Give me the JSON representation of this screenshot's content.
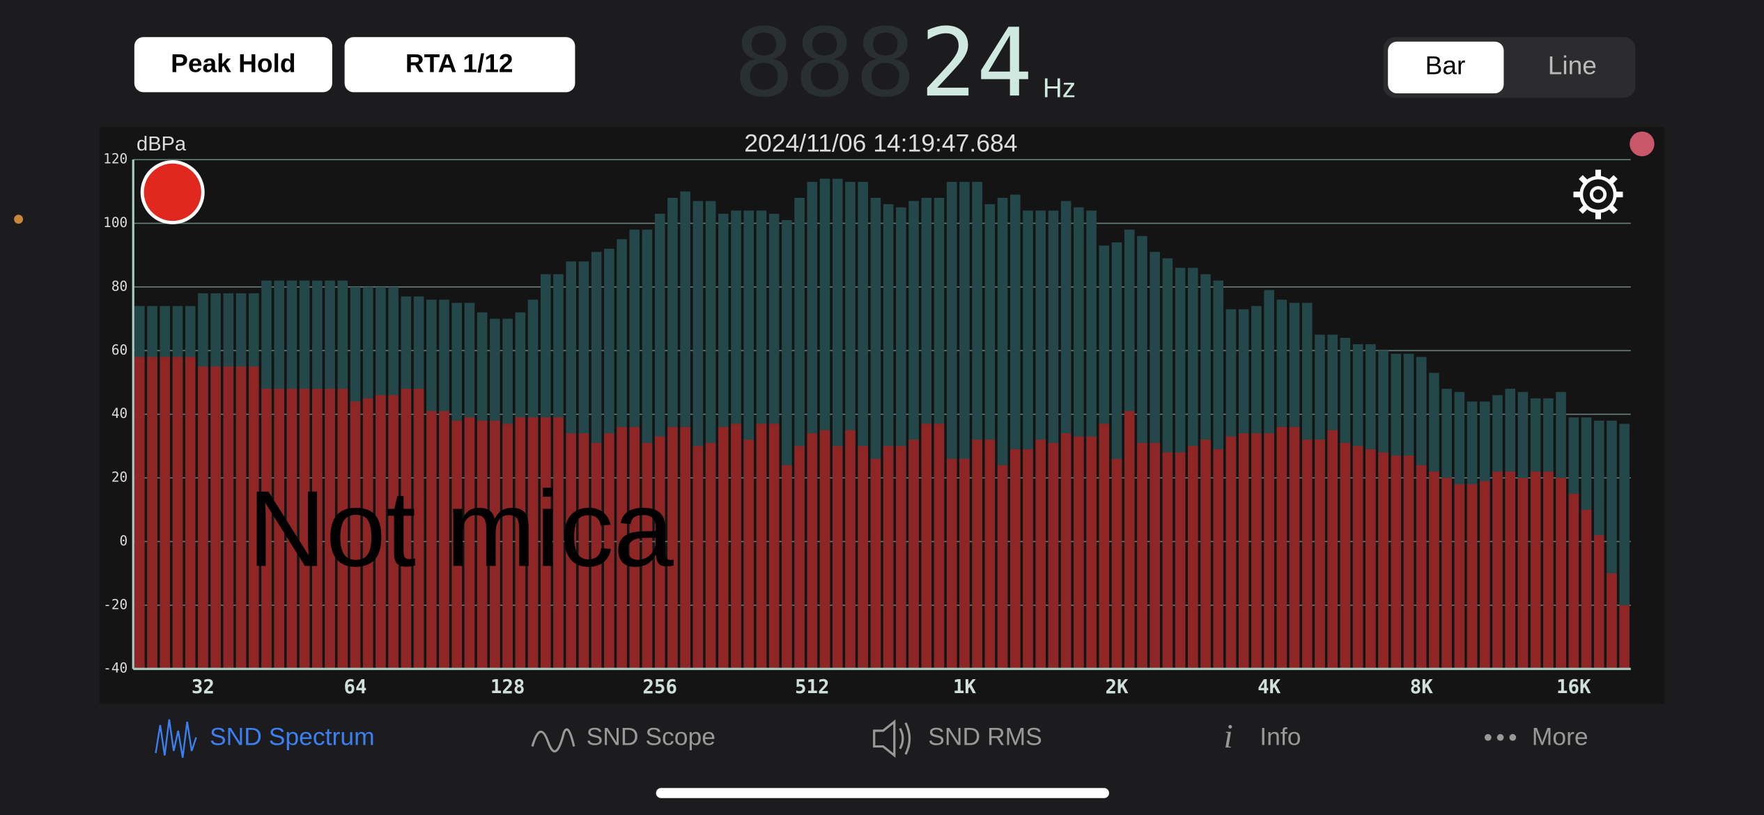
{
  "toolbar": {
    "peak_hold": "Peak Hold",
    "rta": "RTA 1/12",
    "ghost_digits": "888",
    "frequency": "24",
    "unit": "Hz",
    "modes": [
      "Bar",
      "Line"
    ]
  },
  "chart_data": {
    "type": "bar",
    "title": "2024/11/06 14:19:47.684",
    "y_label": "dBPa",
    "annotation": "Not mica",
    "ylim": [
      -40,
      120
    ],
    "yticks": [
      120,
      100,
      80,
      60,
      40,
      20,
      0,
      -20,
      -40
    ],
    "grid": true,
    "categories": [
      null,
      null,
      null,
      null,
      null,
      "32",
      null,
      null,
      null,
      null,
      null,
      null,
      null,
      null,
      null,
      null,
      null,
      "64",
      null,
      null,
      null,
      null,
      null,
      null,
      null,
      null,
      null,
      null,
      null,
      "128",
      null,
      null,
      null,
      null,
      null,
      null,
      null,
      null,
      null,
      null,
      null,
      "256",
      null,
      null,
      null,
      null,
      null,
      null,
      null,
      null,
      null,
      null,
      null,
      "512",
      null,
      null,
      null,
      null,
      null,
      null,
      null,
      null,
      null,
      null,
      null,
      "1K",
      null,
      null,
      null,
      null,
      null,
      null,
      null,
      null,
      null,
      null,
      null,
      "2K",
      null,
      null,
      null,
      null,
      null,
      null,
      null,
      null,
      null,
      null,
      null,
      "4K",
      null,
      null,
      null,
      null,
      null,
      null,
      null,
      null,
      null,
      null,
      null,
      "8K",
      null,
      null,
      null,
      null,
      null,
      null,
      null,
      null,
      null,
      null,
      null,
      "16K",
      null,
      null,
      null,
      null
    ],
    "series": [
      {
        "color": "#24474a",
        "values": [
          74,
          74,
          74,
          74,
          74,
          78,
          78,
          78,
          78,
          78,
          82,
          82,
          82,
          82,
          82,
          82,
          82,
          80,
          80,
          80,
          80,
          77,
          77,
          76,
          76,
          75,
          75,
          72,
          70,
          70,
          72,
          76,
          84,
          84,
          88,
          88,
          91,
          92,
          95,
          98,
          98,
          103,
          108,
          110,
          107,
          107,
          103,
          104,
          104,
          104,
          103,
          101,
          108,
          113,
          114,
          114,
          113,
          113,
          108,
          106,
          105,
          107,
          108,
          108,
          113,
          113,
          113,
          106,
          108,
          109,
          104,
          104,
          104,
          107,
          105,
          104,
          93,
          94,
          98,
          96,
          91,
          89,
          86,
          86,
          84,
          82,
          73,
          73,
          74,
          79,
          76,
          75,
          75,
          65,
          65,
          64,
          62,
          62,
          60,
          59,
          59,
          58,
          53,
          48,
          47,
          44,
          44,
          46,
          48,
          47,
          45,
          45,
          47,
          39,
          39,
          38,
          38,
          37
        ]
      },
      {
        "color": "#8f2626",
        "values": [
          58,
          58,
          58,
          58,
          58,
          55,
          55,
          55,
          55,
          55,
          48,
          48,
          48,
          48,
          48,
          48,
          48,
          44,
          45,
          46,
          46,
          48,
          48,
          41,
          41,
          38,
          39,
          38,
          38,
          37,
          39,
          39,
          39,
          39,
          34,
          34,
          31,
          34,
          36,
          36,
          31,
          33,
          36,
          36,
          30,
          31,
          36,
          37,
          32,
          37,
          37,
          24,
          30,
          34,
          35,
          30,
          35,
          30,
          26,
          30,
          30,
          32,
          37,
          37,
          26,
          26,
          32,
          32,
          24,
          29,
          29,
          32,
          31,
          34,
          33,
          33,
          37,
          26,
          41,
          31,
          31,
          28,
          28,
          30,
          32,
          29,
          33,
          34,
          34,
          34,
          36,
          36,
          32,
          32,
          35,
          31,
          30,
          29,
          28,
          27,
          27,
          24,
          22,
          20,
          18,
          18,
          19,
          22,
          22,
          20,
          22,
          22,
          20,
          15,
          10,
          2,
          -10,
          -20
        ]
      }
    ]
  },
  "tab_bar": [
    "SND Spectrum",
    "SND Scope",
    "SND RMS",
    "Info",
    "More"
  ]
}
